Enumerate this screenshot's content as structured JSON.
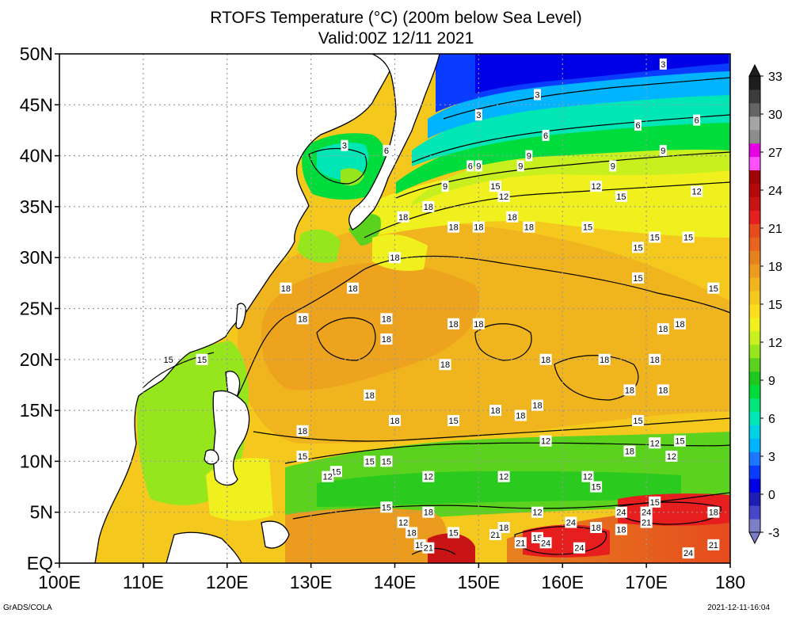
{
  "title_line1": "RTOFS Temperature (°C) (200m below Sea Level)",
  "title_line2": "Valid:00Z 12/11 2021",
  "footer_left": "GrADS/COLA",
  "footer_right": "2021-12-11-16:04",
  "chart_data": {
    "type": "heatmap",
    "title": "RTOFS Temperature (°C) (200m below Sea Level)",
    "subtitle": "Valid:00Z 12/11 2021",
    "xlim": [
      100,
      180
    ],
    "ylim": [
      0,
      50
    ],
    "x_ticks": [
      {
        "v": 100,
        "label": "100E"
      },
      {
        "v": 110,
        "label": "110E"
      },
      {
        "v": 120,
        "label": "120E"
      },
      {
        "v": 130,
        "label": "130E"
      },
      {
        "v": 140,
        "label": "140E"
      },
      {
        "v": 150,
        "label": "150E"
      },
      {
        "v": 160,
        "label": "160E"
      },
      {
        "v": 170,
        "label": "170E"
      },
      {
        "v": 180,
        "label": "180"
      }
    ],
    "y_ticks": [
      {
        "v": 0,
        "label": "EQ"
      },
      {
        "v": 5,
        "label": "5N"
      },
      {
        "v": 10,
        "label": "10N"
      },
      {
        "v": 15,
        "label": "15N"
      },
      {
        "v": 20,
        "label": "20N"
      },
      {
        "v": 25,
        "label": "25N"
      },
      {
        "v": 30,
        "label": "30N"
      },
      {
        "v": 35,
        "label": "35N"
      },
      {
        "v": 40,
        "label": "40N"
      },
      {
        "v": 45,
        "label": "45N"
      },
      {
        "v": 50,
        "label": "50N"
      }
    ],
    "grid": true,
    "colorbar": {
      "min": -3,
      "max": 33,
      "labels": [
        -3,
        0,
        3,
        6,
        9,
        12,
        15,
        18,
        21,
        24,
        27,
        30,
        33
      ],
      "colors": [
        "#7e7ec8",
        "#4646c8",
        "#1e1eb4",
        "#0000e6",
        "#0a3cff",
        "#1e78ff",
        "#00b4ff",
        "#00d2e6",
        "#00e6b4",
        "#00e678",
        "#00dc3c",
        "#1ec81e",
        "#5ad21e",
        "#96e61e",
        "#c8f01e",
        "#f0f01e",
        "#ffdc1e",
        "#f5c81e",
        "#f0b41e",
        "#eb9b1e",
        "#e6821e",
        "#e6641e",
        "#e64b1e",
        "#e61e1e",
        "#c81414",
        "#b40a0a",
        "#a00505",
        "#ff50ff",
        "#e600e6",
        "#8c8c8c",
        "#a5a5a5",
        "#646464",
        "#3c3c3c",
        "#1e1e1e"
      ]
    },
    "contour_labels": [
      {
        "lon": 172,
        "lat": 49,
        "t": "3"
      },
      {
        "lon": 157,
        "lat": 46,
        "t": "3"
      },
      {
        "lon": 134,
        "lat": 41,
        "t": "3"
      },
      {
        "lon": 150,
        "lat": 44,
        "t": "3"
      },
      {
        "lon": 139,
        "lat": 40.5,
        "t": "6"
      },
      {
        "lon": 158,
        "lat": 42,
        "t": "6"
      },
      {
        "lon": 169,
        "lat": 43,
        "t": "6"
      },
      {
        "lon": 176,
        "lat": 43.5,
        "t": "6"
      },
      {
        "lon": 149,
        "lat": 39,
        "t": "6"
      },
      {
        "lon": 150,
        "lat": 39,
        "t": "9"
      },
      {
        "lon": 155,
        "lat": 39,
        "t": "9"
      },
      {
        "lon": 172,
        "lat": 40.5,
        "t": "9"
      },
      {
        "lon": 146,
        "lat": 37,
        "t": "9"
      },
      {
        "lon": 166,
        "lat": 39,
        "t": "9"
      },
      {
        "lon": 156,
        "lat": 40,
        "t": "9"
      },
      {
        "lon": 164,
        "lat": 37,
        "t": "12"
      },
      {
        "lon": 153,
        "lat": 36,
        "t": "12"
      },
      {
        "lon": 176,
        "lat": 36.5,
        "t": "12"
      },
      {
        "lon": 152,
        "lat": 37,
        "t": "15"
      },
      {
        "lon": 167,
        "lat": 36,
        "t": "15"
      },
      {
        "lon": 163,
        "lat": 33,
        "t": "15"
      },
      {
        "lon": 171,
        "lat": 32,
        "t": "15"
      },
      {
        "lon": 175,
        "lat": 32,
        "t": "15"
      },
      {
        "lon": 169,
        "lat": 31,
        "t": "15"
      },
      {
        "lon": 169,
        "lat": 28,
        "t": "15"
      },
      {
        "lon": 178,
        "lat": 27,
        "t": "15"
      },
      {
        "lon": 113,
        "lat": 20,
        "t": "15"
      },
      {
        "lon": 117,
        "lat": 20,
        "t": "15"
      },
      {
        "lon": 144,
        "lat": 35,
        "t": "18"
      },
      {
        "lon": 141,
        "lat": 34,
        "t": "18"
      },
      {
        "lon": 147,
        "lat": 33,
        "t": "18"
      },
      {
        "lon": 150,
        "lat": 33,
        "t": "18"
      },
      {
        "lon": 154,
        "lat": 34,
        "t": "18"
      },
      {
        "lon": 156,
        "lat": 33,
        "t": "18"
      },
      {
        "lon": 140,
        "lat": 30,
        "t": "18"
      },
      {
        "lon": 127,
        "lat": 27,
        "t": "18"
      },
      {
        "lon": 135,
        "lat": 27,
        "t": "18"
      },
      {
        "lon": 129,
        "lat": 24,
        "t": "18"
      },
      {
        "lon": 139,
        "lat": 24,
        "t": "18"
      },
      {
        "lon": 147,
        "lat": 23.5,
        "t": "18"
      },
      {
        "lon": 150,
        "lat": 23.5,
        "t": "18"
      },
      {
        "lon": 139,
        "lat": 22,
        "t": "18"
      },
      {
        "lon": 146,
        "lat": 19.5,
        "t": "18"
      },
      {
        "lon": 158,
        "lat": 20,
        "t": "18"
      },
      {
        "lon": 165,
        "lat": 20,
        "t": "18"
      },
      {
        "lon": 171,
        "lat": 20,
        "t": "18"
      },
      {
        "lon": 172,
        "lat": 23,
        "t": "18"
      },
      {
        "lon": 174,
        "lat": 23.5,
        "t": "18"
      },
      {
        "lon": 137,
        "lat": 16.5,
        "t": "18"
      },
      {
        "lon": 140,
        "lat": 14,
        "t": "18"
      },
      {
        "lon": 152,
        "lat": 15,
        "t": "18"
      },
      {
        "lon": 155,
        "lat": 14.5,
        "t": "18"
      },
      {
        "lon": 157,
        "lat": 15.5,
        "t": "18"
      },
      {
        "lon": 168,
        "lat": 17,
        "t": "18"
      },
      {
        "lon": 172,
        "lat": 17,
        "t": "18"
      },
      {
        "lon": 129,
        "lat": 13,
        "t": "18"
      },
      {
        "lon": 147,
        "lat": 14,
        "t": "15"
      },
      {
        "lon": 169,
        "lat": 14,
        "t": "15"
      },
      {
        "lon": 158,
        "lat": 12,
        "t": "12"
      },
      {
        "lon": 171,
        "lat": 11.8,
        "t": "12"
      },
      {
        "lon": 174,
        "lat": 12,
        "t": "15"
      },
      {
        "lon": 129,
        "lat": 10.5,
        "t": "15"
      },
      {
        "lon": 137,
        "lat": 10,
        "t": "15"
      },
      {
        "lon": 139,
        "lat": 10,
        "t": "15"
      },
      {
        "lon": 133,
        "lat": 9,
        "t": "15"
      },
      {
        "lon": 132,
        "lat": 8.5,
        "t": "12"
      },
      {
        "lon": 144,
        "lat": 8.5,
        "t": "12"
      },
      {
        "lon": 153,
        "lat": 8.5,
        "t": "12"
      },
      {
        "lon": 163,
        "lat": 8.5,
        "t": "12"
      },
      {
        "lon": 164,
        "lat": 7.5,
        "t": "15"
      },
      {
        "lon": 168,
        "lat": 11,
        "t": "18"
      },
      {
        "lon": 173,
        "lat": 10.5,
        "t": "12"
      },
      {
        "lon": 171,
        "lat": 6,
        "t": "15"
      },
      {
        "lon": 178,
        "lat": 5,
        "t": "18"
      },
      {
        "lon": 144,
        "lat": 5,
        "t": "18"
      },
      {
        "lon": 139,
        "lat": 5.5,
        "t": "15"
      },
      {
        "lon": 141,
        "lat": 4,
        "t": "12"
      },
      {
        "lon": 157,
        "lat": 5,
        "t": "12"
      },
      {
        "lon": 161,
        "lat": 4,
        "t": "24"
      },
      {
        "lon": 167,
        "lat": 5,
        "t": "24"
      },
      {
        "lon": 170,
        "lat": 5,
        "t": "24"
      },
      {
        "lon": 170,
        "lat": 4,
        "t": "21"
      },
      {
        "lon": 164,
        "lat": 3.5,
        "t": "18"
      },
      {
        "lon": 167,
        "lat": 3.3,
        "t": "18"
      },
      {
        "lon": 142,
        "lat": 3,
        "t": "18"
      },
      {
        "lon": 147,
        "lat": 3,
        "t": "15"
      },
      {
        "lon": 152,
        "lat": 2.8,
        "t": "21"
      },
      {
        "lon": 153,
        "lat": 3.5,
        "t": "18"
      },
      {
        "lon": 155,
        "lat": 2,
        "t": "21"
      },
      {
        "lon": 157,
        "lat": 2.5,
        "t": "15"
      },
      {
        "lon": 158,
        "lat": 2,
        "t": "24"
      },
      {
        "lon": 162,
        "lat": 1.5,
        "t": "24"
      },
      {
        "lon": 143,
        "lat": 1.8,
        "t": "19"
      },
      {
        "lon": 144,
        "lat": 1.5,
        "t": "21"
      },
      {
        "lon": 178,
        "lat": 1.8,
        "t": "21"
      },
      {
        "lon": 175,
        "lat": 1,
        "t": "24"
      }
    ]
  }
}
